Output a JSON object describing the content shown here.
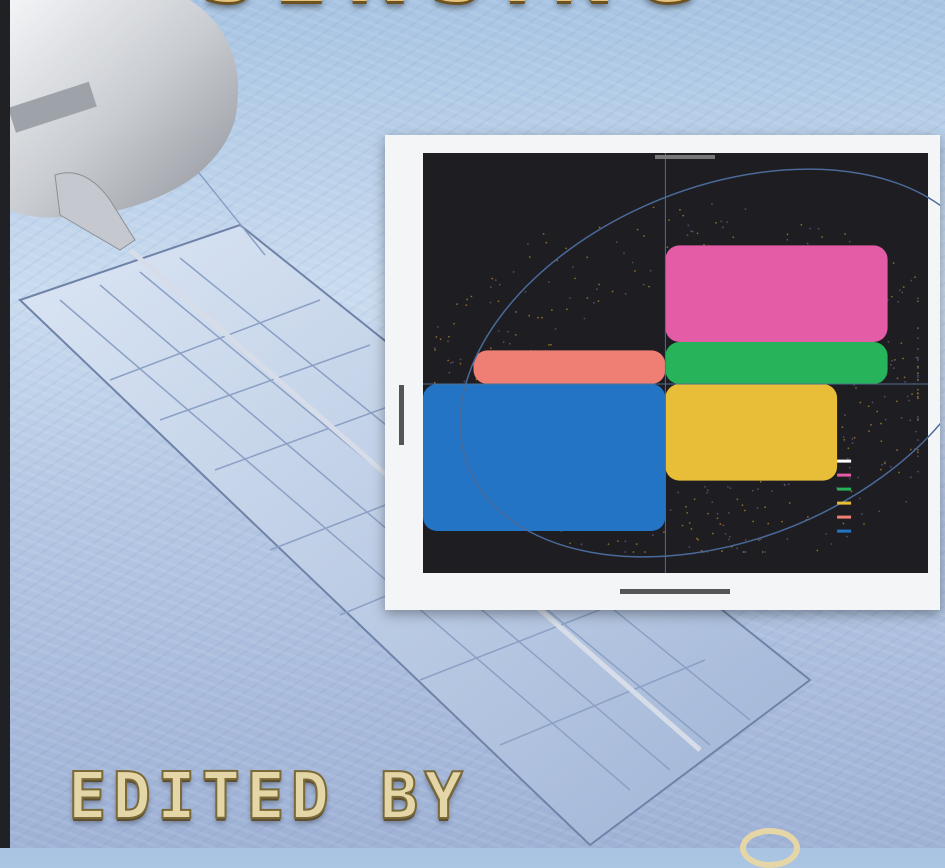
{
  "cover": {
    "title_fragment": "SENSING",
    "editor_line": "EDITED BY"
  },
  "colors": {
    "sky": "#bcd2ea",
    "title_gold": "#e7c27a",
    "panel": "#c4d4ea",
    "pink": "#e45ba6",
    "salmon": "#ef7f74",
    "green": "#26b35a",
    "blue": "#2474c6",
    "yellow": "#e8be38",
    "plot_bg": "#1e1d22"
  },
  "chart_data": {
    "type": "scatter",
    "title": "",
    "xlabel": "",
    "ylabel": "",
    "regions": [
      {
        "color_name": "blue",
        "x_range": [
          0,
          0.48
        ],
        "y_range": [
          0.1,
          0.45
        ]
      },
      {
        "color_name": "salmon",
        "x_range": [
          0.1,
          0.48
        ],
        "y_range": [
          0.45,
          0.53
        ]
      },
      {
        "color_name": "yellow",
        "x_range": [
          0.48,
          0.82
        ],
        "y_range": [
          0.22,
          0.45
        ]
      },
      {
        "color_name": "green",
        "x_range": [
          0.48,
          0.92
        ],
        "y_range": [
          0.45,
          0.55
        ]
      },
      {
        "color_name": "pink",
        "x_range": [
          0.48,
          0.92
        ],
        "y_range": [
          0.55,
          0.78
        ]
      }
    ],
    "legend_entries": 6,
    "legend_placement": "bottom-right"
  }
}
